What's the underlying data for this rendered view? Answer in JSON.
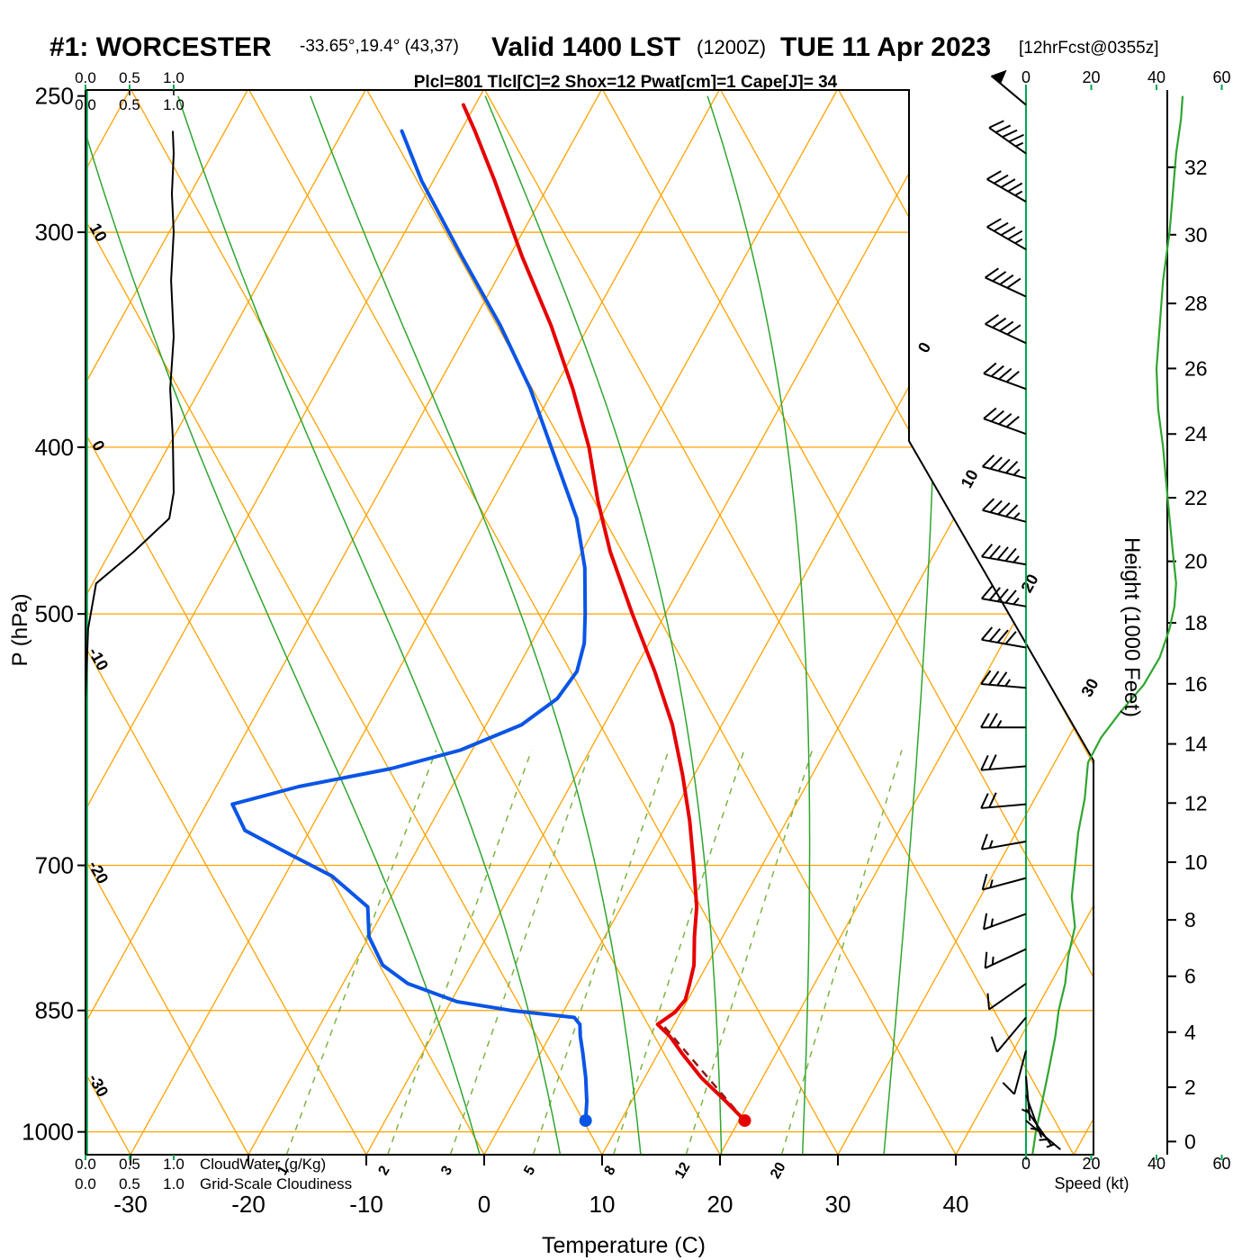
{
  "header": {
    "station": "#1: WORCESTER",
    "coords": "-33.65°,19.4° (43,37)",
    "valid": "Valid 1400 LST",
    "valid_zulu": "(1200Z)",
    "valid_date": "TUE 11 Apr 2023",
    "forecast_tag": "[12hrFcst@0355z]",
    "stats_line": "Plcl=801 Tlcl[C]=2 Shox=12 Pwat[cm]=1 Cape[J]= 34"
  },
  "axes": {
    "pressure_label": "P (hPa)",
    "pressure_ticks": [
      250,
      300,
      400,
      500,
      700,
      850,
      1000
    ],
    "temperature_label": "Temperature (C)",
    "temperature_ticks": [
      -30,
      -20,
      -10,
      0,
      10,
      20,
      30,
      40
    ],
    "height_label": "Height (1000 Feet)",
    "height_ticks_kft": [
      0,
      2,
      4,
      6,
      8,
      10,
      12,
      14,
      16,
      18,
      20,
      22,
      24,
      26,
      28,
      30,
      32
    ],
    "speed_label": "Speed (kt)",
    "speed_ticks_kt": [
      0,
      20,
      40,
      60
    ],
    "cloud_scale_ticks": [
      "0.0",
      "0.5",
      "1.0"
    ],
    "cloudwater_label": "CloudWater (g/Kg)",
    "cloudiness_label": "Grid-Scale Cloudiness"
  },
  "chart_data": {
    "type": "skewt_tephigram_sounding",
    "pressure_range_hpa": [
      250,
      1030
    ],
    "isobars_hpa": [
      300,
      400,
      500,
      700,
      850,
      1000
    ],
    "isotherm_step_c": 10,
    "isotherm_labels_right_c": [
      0,
      10,
      20,
      30
    ],
    "dry_adiabat_labels_left_c": [
      10,
      0,
      -10,
      -20,
      -30
    ],
    "mixing_ratio_lines_gkg": [
      1,
      2,
      3,
      5,
      8,
      12,
      20
    ],
    "moist_adiabat_starts_c": [
      -2,
      5,
      12,
      19,
      26,
      33
    ],
    "temperature_profile_p_c": [
      [
        985,
        20.5
      ],
      [
        960,
        18.0
      ],
      [
        930,
        14.8
      ],
      [
        900,
        12.0
      ],
      [
        880,
        10.2
      ],
      [
        866,
        8.6
      ],
      [
        852,
        9.5
      ],
      [
        838,
        9.8
      ],
      [
        820,
        9.4
      ],
      [
        800,
        8.9
      ],
      [
        770,
        7.6
      ],
      [
        740,
        6.4
      ],
      [
        700,
        4.2
      ],
      [
        660,
        1.8
      ],
      [
        620,
        -1.0
      ],
      [
        580,
        -4.2
      ],
      [
        540,
        -8.2
      ],
      [
        500,
        -12.8
      ],
      [
        460,
        -17.6
      ],
      [
        430,
        -21.0
      ],
      [
        400,
        -24.3
      ],
      [
        370,
        -28.4
      ],
      [
        340,
        -33.2
      ],
      [
        310,
        -38.9
      ],
      [
        280,
        -44.8
      ],
      [
        262,
        -48.8
      ],
      [
        253,
        -51.0
      ]
    ],
    "dewpoint_profile_p_c": [
      [
        985,
        7.0
      ],
      [
        960,
        6.2
      ],
      [
        930,
        5.0
      ],
      [
        900,
        3.6
      ],
      [
        880,
        2.6
      ],
      [
        866,
        2.0
      ],
      [
        858,
        1.2
      ],
      [
        850,
        -4.5
      ],
      [
        840,
        -9.5
      ],
      [
        820,
        -14.5
      ],
      [
        800,
        -17.5
      ],
      [
        770,
        -20.0
      ],
      [
        740,
        -21.5
      ],
      [
        710,
        -26.0
      ],
      [
        690,
        -30.5
      ],
      [
        668,
        -35.5
      ],
      [
        645,
        -37.8
      ],
      [
        630,
        -33.0
      ],
      [
        615,
        -26.0
      ],
      [
        600,
        -21.0
      ],
      [
        580,
        -17.0
      ],
      [
        560,
        -15.2
      ],
      [
        540,
        -14.8
      ],
      [
        520,
        -15.5
      ],
      [
        500,
        -16.8
      ],
      [
        470,
        -19.0
      ],
      [
        440,
        -22.0
      ],
      [
        400,
        -27.5
      ],
      [
        370,
        -32.0
      ],
      [
        340,
        -37.5
      ],
      [
        310,
        -44.0
      ],
      [
        280,
        -51.0
      ],
      [
        262,
        -55.0
      ]
    ],
    "parcel_path_p_c": [
      [
        985,
        20.5
      ],
      [
        866,
        9.0
      ]
    ],
    "surface_temp_point_p_c": [
      985,
      20.5
    ],
    "surface_dewpoint_point_p_c": [
      985,
      7.0
    ],
    "cloudiness_profile_p_frac": [
      [
        1030,
        0
      ],
      [
        700,
        0
      ],
      [
        560,
        0
      ],
      [
        510,
        0.03
      ],
      [
        480,
        0.12
      ],
      [
        460,
        0.55
      ],
      [
        440,
        0.95
      ],
      [
        425,
        1.0
      ],
      [
        395,
        0.99
      ],
      [
        370,
        0.96
      ],
      [
        345,
        1.0
      ],
      [
        320,
        0.97
      ],
      [
        300,
        1.0
      ],
      [
        285,
        0.98
      ],
      [
        270,
        1.0
      ],
      [
        262,
        0.99
      ]
    ],
    "wind_speed_profile_p_kt": [
      [
        1030,
        2
      ],
      [
        1000,
        3
      ],
      [
        960,
        5
      ],
      [
        920,
        7
      ],
      [
        880,
        9
      ],
      [
        850,
        10
      ],
      [
        820,
        12
      ],
      [
        790,
        13
      ],
      [
        760,
        15
      ],
      [
        730,
        14
      ],
      [
        700,
        15
      ],
      [
        670,
        16
      ],
      [
        640,
        18
      ],
      [
        610,
        19
      ],
      [
        590,
        23
      ],
      [
        570,
        29
      ],
      [
        550,
        36
      ],
      [
        530,
        41
      ],
      [
        510,
        44
      ],
      [
        495,
        45.5
      ],
      [
        480,
        46
      ],
      [
        460,
        45
      ],
      [
        440,
        44
      ],
      [
        420,
        43
      ],
      [
        400,
        42
      ],
      [
        380,
        40.5
      ],
      [
        360,
        40
      ],
      [
        340,
        41
      ],
      [
        320,
        42
      ],
      [
        300,
        44
      ],
      [
        285,
        45
      ],
      [
        270,
        46
      ],
      [
        258,
        47.5
      ],
      [
        250,
        48
      ]
    ],
    "wind_barbs_p_dir_kt": [
      [
        253,
        310,
        50
      ],
      [
        270,
        305,
        47
      ],
      [
        288,
        300,
        45
      ],
      [
        307,
        300,
        44
      ],
      [
        327,
        295,
        42
      ],
      [
        348,
        295,
        41
      ],
      [
        370,
        290,
        41
      ],
      [
        393,
        290,
        42
      ],
      [
        417,
        285,
        43
      ],
      [
        442,
        285,
        44
      ],
      [
        468,
        280,
        46
      ],
      [
        495,
        280,
        45
      ],
      [
        523,
        280,
        42
      ],
      [
        552,
        275,
        36
      ],
      [
        582,
        270,
        24
      ],
      [
        613,
        265,
        19
      ],
      [
        645,
        265,
        18
      ],
      [
        678,
        260,
        16
      ],
      [
        712,
        255,
        15
      ],
      [
        747,
        250,
        14
      ],
      [
        783,
        245,
        13
      ],
      [
        820,
        235,
        12
      ],
      [
        858,
        220,
        10
      ],
      [
        897,
        195,
        9
      ],
      [
        928,
        175,
        7
      ],
      [
        952,
        160,
        6
      ],
      [
        970,
        145,
        5
      ],
      [
        985,
        130,
        4
      ]
    ],
    "colors": {
      "grid_orange": "#ffa200",
      "moist_green": "#2fa52f",
      "mixing_green": "#7cb342",
      "scale_green": "#00a651",
      "temperature_red": "#e60000",
      "dewpoint_blue": "#0a55e6",
      "parcel_darkred": "#8b1a1a",
      "stats_magenta": "#b03060",
      "axis_black": "#000000"
    }
  }
}
